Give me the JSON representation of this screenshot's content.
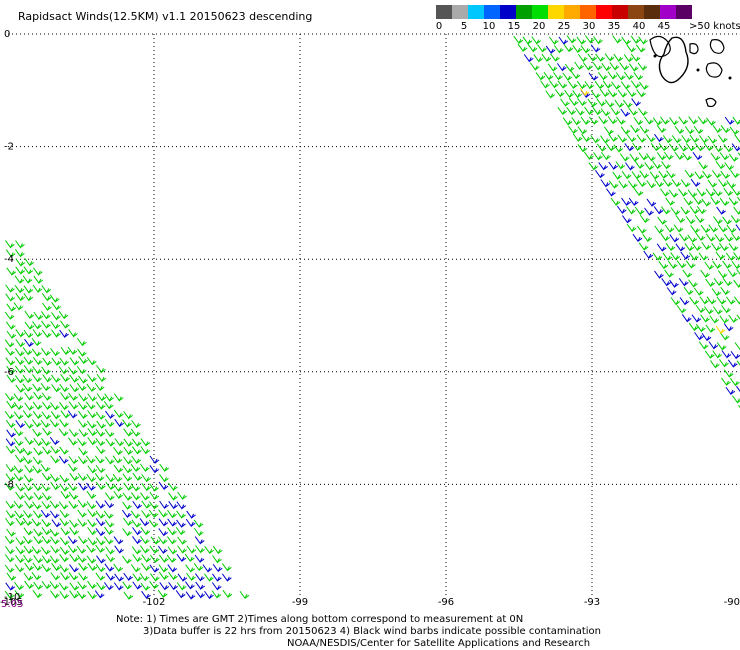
{
  "title": "Rapidsact Winds(12.5KM) v1.1 20150623 descending",
  "colorbar": {
    "labels": [
      "0",
      "5",
      "10",
      "15",
      "20",
      "25",
      "30",
      "35",
      "40",
      "45",
      ">50 knots"
    ],
    "colors": [
      "#555555",
      "#aaaaaa",
      "#00c8ff",
      "#0064ff",
      "#0000c8",
      "#00a000",
      "#00dd00",
      "#ffd700",
      "#ffaa00",
      "#ff6400",
      "#ff0000",
      "#c80000",
      "#8b4513",
      "#5a2d0c",
      "#a000c8",
      "#5a0064"
    ]
  },
  "time_label": "5:05",
  "notes": {
    "line1": "Note: 1) Times are GMT 2)Times along bottom correspond to measurement at 0N",
    "line2": "3)Data buffer is 22 hrs from 20150623 4) Black wind barbs indicate possible contamination",
    "line3": "NOAA/NESDIS/Center for Satellite Applications and Research"
  },
  "chart_data": {
    "type": "scatter",
    "title": "Rapidsact Winds(12.5KM) v1.1 20150623 descending",
    "xlim": [
      -105,
      -90
    ],
    "ylim": [
      -10,
      0
    ],
    "x_ticks": [
      "-105",
      "-102",
      "-99",
      "-96",
      "-93",
      "-90"
    ],
    "y_ticks": [
      "0",
      "-2",
      "-4",
      "-6",
      "-8",
      "-10"
    ],
    "grid": true,
    "colors": {
      "green": "#00cc00",
      "blue": "#0000cc",
      "yellow": "#ffd700"
    },
    "swaths": [
      {
        "lon_range": [
          -94.6,
          -90
        ],
        "lat_range": [
          -7.0,
          0
        ],
        "dominant_speed_knots": "15-20"
      },
      {
        "lon_range": [
          -105,
          -100
        ],
        "lat_range": [
          -10,
          -3.4
        ],
        "dominant_speed_knots": "15-20"
      }
    ]
  }
}
